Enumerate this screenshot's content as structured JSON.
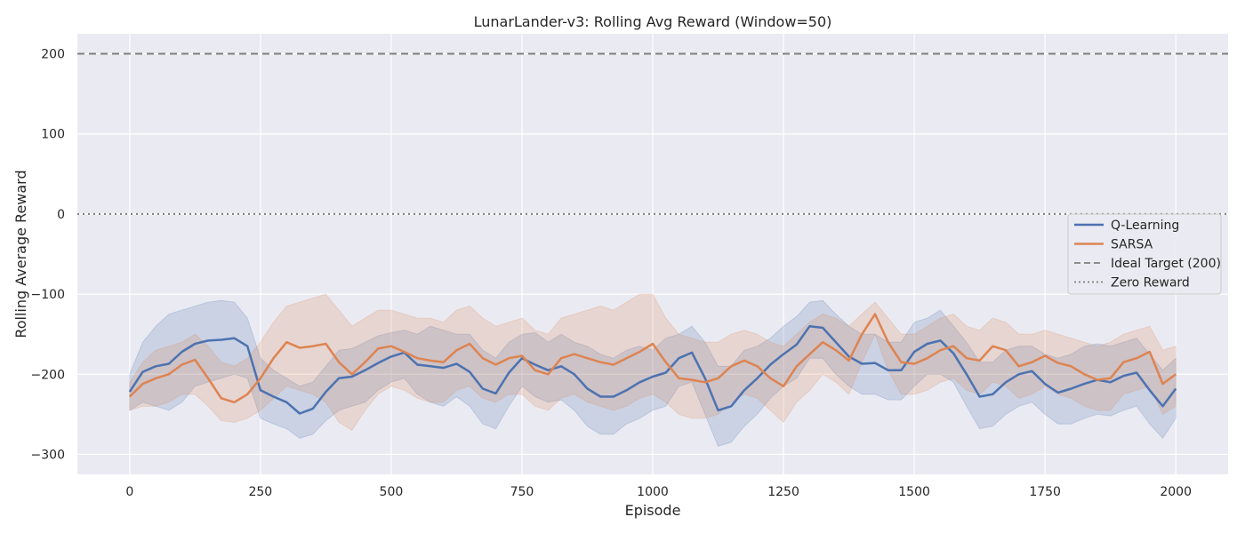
{
  "chart_data": {
    "type": "line",
    "title": "LunarLander-v3: Rolling Avg Reward (Window=50)",
    "xlabel": "Episode",
    "ylabel": "Rolling Average Reward",
    "xlim": [
      -100,
      2100
    ],
    "ylim": [
      -325,
      225
    ],
    "xticks": [
      0,
      250,
      500,
      750,
      1000,
      1250,
      1500,
      1750,
      2000
    ],
    "yticks": [
      -300,
      -200,
      -100,
      0,
      100,
      200
    ],
    "ytick_labels": [
      "−300",
      "−200",
      "−100",
      "0",
      "100",
      "200"
    ],
    "grid": true,
    "background": "#eaeaf2",
    "legend_position": "center-right",
    "series": [
      {
        "name": "Q-Learning",
        "color": "#4c72b0",
        "x": [
          0,
          25,
          50,
          75,
          100,
          125,
          150,
          175,
          200,
          225,
          250,
          275,
          300,
          325,
          350,
          375,
          400,
          425,
          450,
          475,
          500,
          525,
          550,
          575,
          600,
          625,
          650,
          675,
          700,
          725,
          750,
          775,
          800,
          825,
          850,
          875,
          900,
          925,
          950,
          975,
          1000,
          1025,
          1050,
          1075,
          1100,
          1125,
          1150,
          1175,
          1200,
          1225,
          1250,
          1275,
          1300,
          1325,
          1350,
          1375,
          1400,
          1425,
          1450,
          1475,
          1500,
          1525,
          1550,
          1575,
          1600,
          1625,
          1650,
          1675,
          1700,
          1725,
          1750,
          1775,
          1800,
          1825,
          1850,
          1875,
          1900,
          1925,
          1950,
          1975,
          2000
        ],
        "y": [
          -222,
          -197,
          -190,
          -187,
          -172,
          -162,
          -158,
          -157,
          -155,
          -165,
          -220,
          -228,
          -235,
          -249,
          -243,
          -222,
          -205,
          -203,
          -195,
          -186,
          -178,
          -173,
          -188,
          -190,
          -192,
          -187,
          -197,
          -218,
          -224,
          -198,
          -180,
          -188,
          -195,
          -190,
          -200,
          -218,
          -228,
          -228,
          -220,
          -210,
          -203,
          -198,
          -180,
          -173,
          -205,
          -245,
          -240,
          -220,
          -205,
          -188,
          -175,
          -163,
          -140,
          -142,
          -160,
          -178,
          -187,
          -186,
          -195,
          -195,
          -172,
          -162,
          -158,
          -174,
          -200,
          -228,
          -225,
          -210,
          -200,
          -196,
          -212,
          -223,
          -218,
          -212,
          -207,
          -210,
          -202,
          -198,
          -220,
          -240,
          -218
        ],
        "band_upper": [
          -200,
          -160,
          -140,
          -125,
          -120,
          -115,
          -110,
          -108,
          -110,
          -130,
          -180,
          -195,
          -205,
          -215,
          -210,
          -190,
          -170,
          -168,
          -160,
          -152,
          -148,
          -145,
          -150,
          -140,
          -145,
          -150,
          -150,
          -170,
          -180,
          -160,
          -150,
          -148,
          -160,
          -150,
          -160,
          -165,
          -175,
          -180,
          -170,
          -165,
          -170,
          -155,
          -150,
          -140,
          -160,
          -190,
          -190,
          -170,
          -165,
          -155,
          -140,
          -128,
          -110,
          -108,
          -125,
          -140,
          -150,
          -150,
          -160,
          -160,
          -135,
          -130,
          -120,
          -140,
          -160,
          -185,
          -185,
          -170,
          -165,
          -165,
          -175,
          -180,
          -175,
          -165,
          -162,
          -165,
          -160,
          -155,
          -175,
          -195,
          -180
        ],
        "band_lower": [
          -245,
          -235,
          -240,
          -245,
          -235,
          -215,
          -210,
          -205,
          -200,
          -205,
          -255,
          -262,
          -268,
          -280,
          -275,
          -258,
          -245,
          -240,
          -235,
          -220,
          -210,
          -205,
          -225,
          -235,
          -240,
          -228,
          -240,
          -262,
          -268,
          -240,
          -215,
          -228,
          -235,
          -232,
          -245,
          -265,
          -275,
          -275,
          -262,
          -255,
          -245,
          -240,
          -215,
          -210,
          -250,
          -290,
          -285,
          -265,
          -250,
          -230,
          -215,
          -205,
          -180,
          -180,
          -200,
          -215,
          -225,
          -225,
          -232,
          -232,
          -215,
          -200,
          -200,
          -210,
          -240,
          -268,
          -265,
          -250,
          -240,
          -235,
          -250,
          -262,
          -262,
          -255,
          -250,
          -252,
          -245,
          -240,
          -262,
          -280,
          -255
        ]
      },
      {
        "name": "SARSA",
        "color": "#dd8452",
        "x": [
          0,
          25,
          50,
          75,
          100,
          125,
          150,
          175,
          200,
          225,
          250,
          275,
          300,
          325,
          350,
          375,
          400,
          425,
          450,
          475,
          500,
          525,
          550,
          575,
          600,
          625,
          650,
          675,
          700,
          725,
          750,
          775,
          800,
          825,
          850,
          875,
          900,
          925,
          950,
          975,
          1000,
          1025,
          1050,
          1075,
          1100,
          1125,
          1150,
          1175,
          1200,
          1225,
          1250,
          1275,
          1300,
          1325,
          1350,
          1375,
          1400,
          1425,
          1450,
          1475,
          1500,
          1525,
          1550,
          1575,
          1600,
          1625,
          1650,
          1675,
          1700,
          1725,
          1750,
          1775,
          1800,
          1825,
          1850,
          1875,
          1900,
          1925,
          1950,
          1975,
          2000
        ],
        "y": [
          -228,
          -212,
          -205,
          -200,
          -188,
          -182,
          -205,
          -230,
          -235,
          -225,
          -205,
          -180,
          -160,
          -167,
          -165,
          -162,
          -185,
          -200,
          -185,
          -168,
          -165,
          -172,
          -180,
          -183,
          -185,
          -170,
          -162,
          -180,
          -188,
          -180,
          -177,
          -195,
          -200,
          -180,
          -175,
          -180,
          -185,
          -188,
          -180,
          -172,
          -162,
          -185,
          -205,
          -207,
          -210,
          -205,
          -190,
          -183,
          -190,
          -205,
          -215,
          -190,
          -175,
          -160,
          -170,
          -183,
          -150,
          -125,
          -160,
          -185,
          -187,
          -180,
          -170,
          -165,
          -180,
          -183,
          -165,
          -170,
          -190,
          -185,
          -177,
          -186,
          -190,
          -200,
          -207,
          -205,
          -185,
          -180,
          -172,
          -212,
          -200
        ],
        "band_upper": [
          -210,
          -185,
          -170,
          -165,
          -160,
          -150,
          -165,
          -185,
          -190,
          -180,
          -160,
          -135,
          -115,
          -110,
          -105,
          -100,
          -120,
          -140,
          -130,
          -120,
          -120,
          -125,
          -130,
          -130,
          -135,
          -120,
          -115,
          -130,
          -140,
          -135,
          -130,
          -145,
          -150,
          -130,
          -125,
          -120,
          -115,
          -120,
          -110,
          -100,
          -100,
          -130,
          -150,
          -155,
          -160,
          -160,
          -150,
          -145,
          -150,
          -160,
          -165,
          -150,
          -135,
          -125,
          -130,
          -140,
          -125,
          -110,
          -130,
          -150,
          -150,
          -140,
          -130,
          -125,
          -140,
          -145,
          -130,
          -135,
          -150,
          -150,
          -145,
          -150,
          -155,
          -160,
          -165,
          -160,
          -150,
          -145,
          -140,
          -170,
          -165
        ],
        "band_lower": [
          -245,
          -240,
          -240,
          -235,
          -225,
          -225,
          -240,
          -258,
          -260,
          -255,
          -245,
          -230,
          -215,
          -220,
          -225,
          -235,
          -260,
          -270,
          -245,
          -225,
          -215,
          -220,
          -230,
          -235,
          -235,
          -220,
          -215,
          -230,
          -235,
          -225,
          -225,
          -240,
          -245,
          -230,
          -225,
          -235,
          -240,
          -245,
          -240,
          -230,
          -225,
          -235,
          -250,
          -255,
          -255,
          -250,
          -235,
          -225,
          -230,
          -245,
          -260,
          -235,
          -220,
          -200,
          -210,
          -225,
          -185,
          -150,
          -195,
          -225,
          -225,
          -220,
          -210,
          -205,
          -220,
          -225,
          -210,
          -215,
          -230,
          -225,
          -215,
          -225,
          -230,
          -240,
          -245,
          -245,
          -225,
          -220,
          -215,
          -250,
          -240
        ]
      },
      {
        "name": "Ideal Target (200)",
        "color": "#7f7f7f",
        "style": "dashed",
        "y_constant": 200
      },
      {
        "name": "Zero Reward",
        "color": "#7f7f7f",
        "style": "dotted",
        "y_constant": 0
      }
    ]
  }
}
